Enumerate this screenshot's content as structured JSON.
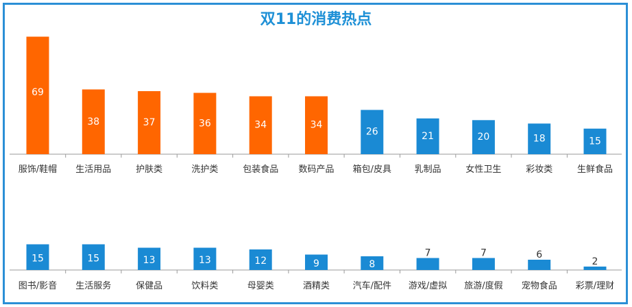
{
  "chart_data": [
    {
      "type": "bar",
      "title": "双11的消费热点",
      "categories": [
        "服饰/鞋帽",
        "生活用品",
        "护肤类",
        "洗护类",
        "包装食品",
        "数码产品",
        "箱包/皮具",
        "乳制品",
        "女性卫生",
        "彩妆类",
        "生鲜食品"
      ],
      "values": [
        69,
        38,
        37,
        36,
        34,
        34,
        26,
        21,
        20,
        18,
        15
      ],
      "bar_colors": [
        "#ff6600",
        "#ff6600",
        "#ff6600",
        "#ff6600",
        "#ff6600",
        "#ff6600",
        "#1a8ad4",
        "#1a8ad4",
        "#1a8ad4",
        "#1a8ad4",
        "#1a8ad4"
      ],
      "ylim": [
        0,
        72
      ],
      "grid": false
    },
    {
      "type": "bar",
      "categories": [
        "图书/影音",
        "生活服务",
        "保健品",
        "饮料类",
        "母婴类",
        "酒精类",
        "汽车/配件",
        "游戏/虚拟",
        "旅游/度假",
        "宠物食品",
        "彩票/理财"
      ],
      "values": [
        15,
        15,
        13,
        13,
        12,
        9,
        8,
        7,
        7,
        6,
        2
      ],
      "bar_colors": [
        "#1a8ad4",
        "#1a8ad4",
        "#1a8ad4",
        "#1a8ad4",
        "#1a8ad4",
        "#1a8ad4",
        "#1a8ad4",
        "#1a8ad4",
        "#1a8ad4",
        "#1a8ad4",
        "#1a8ad4"
      ],
      "ylim": [
        0,
        16
      ],
      "grid": false
    }
  ],
  "colors": {
    "orange": "#ff6600",
    "blue": "#1a8ad4",
    "border": "#2b8fd6",
    "title": "#1e90d6"
  }
}
